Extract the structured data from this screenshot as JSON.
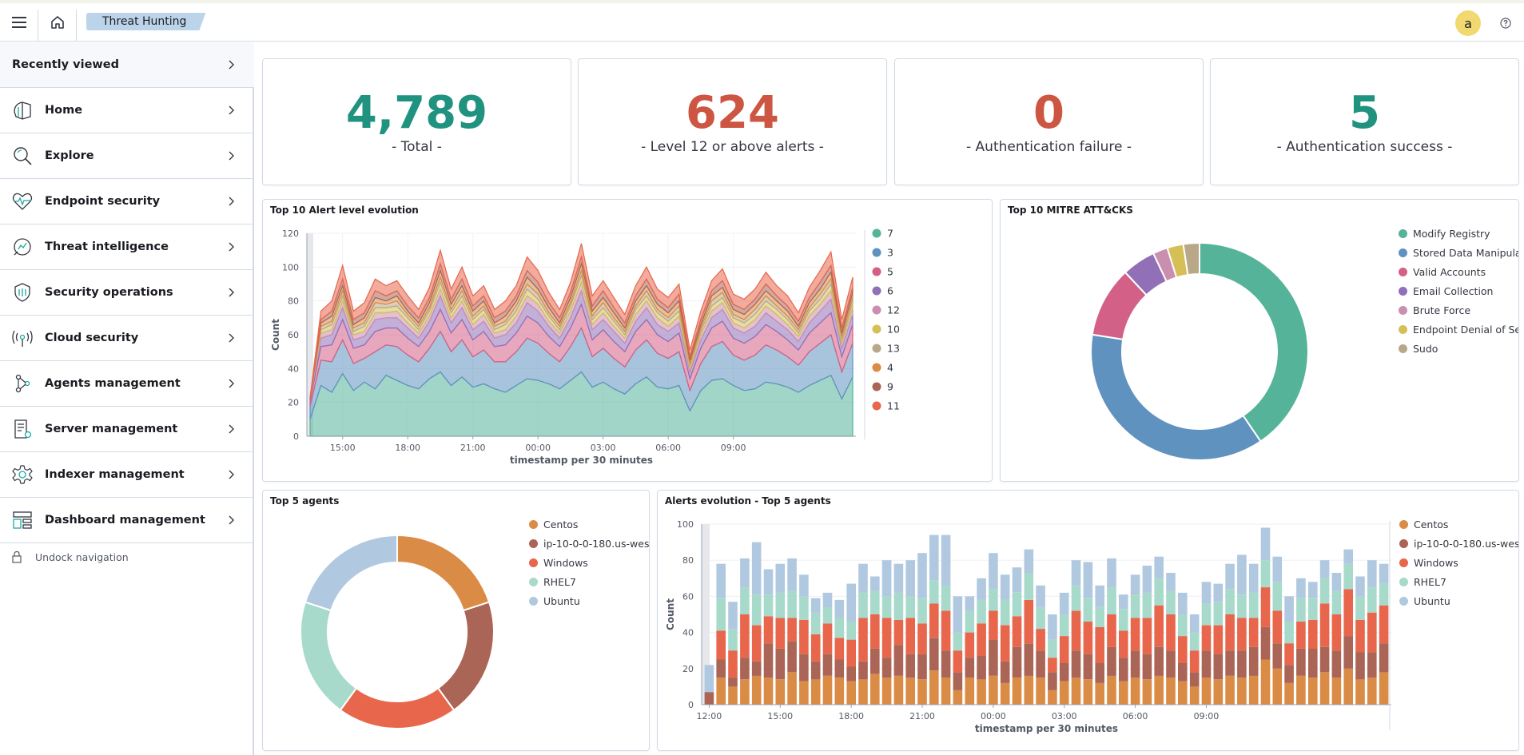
{
  "header": {
    "breadcrumb": "Threat Hunting",
    "avatar_initial": "a",
    "icons": [
      "menu-icon",
      "home-icon",
      "help-icon"
    ]
  },
  "sidebar": {
    "recently_viewed": "Recently viewed",
    "items": [
      {
        "label": "Home",
        "icon": "home-outline-icon"
      },
      {
        "label": "Explore",
        "icon": "search-icon"
      },
      {
        "label": "Endpoint security",
        "icon": "heartbeat-icon"
      },
      {
        "label": "Threat intelligence",
        "icon": "threat-intel-icon"
      },
      {
        "label": "Security operations",
        "icon": "shield-icon"
      },
      {
        "label": "Cloud security",
        "icon": "antenna-icon"
      },
      {
        "label": "Agents management",
        "icon": "nodes-icon"
      },
      {
        "label": "Server management",
        "icon": "server-doc-icon"
      },
      {
        "label": "Indexer management",
        "icon": "gear-icon"
      },
      {
        "label": "Dashboard management",
        "icon": "dashboard-icon"
      }
    ],
    "undock": "Undock navigation"
  },
  "metrics": [
    {
      "value": "4,789",
      "label": "- Total -",
      "color": "#209280"
    },
    {
      "value": "624",
      "label": "- Level 12 or above alerts -",
      "color": "#cc5642"
    },
    {
      "value": "0",
      "label": "- Authentication failure -",
      "color": "#cc5642"
    },
    {
      "value": "5",
      "label": "- Authentication success -",
      "color": "#209280"
    }
  ],
  "panels": {
    "alert_evolution": "Top 10 Alert level evolution",
    "mitre": "Top 10 MITRE ATT&CKS",
    "top_agents": "Top 5 agents",
    "agents_evolution": "Alerts evolution - Top 5 agents"
  },
  "chart_data": [
    {
      "type": "area",
      "stacked": true,
      "title": "Top 10 Alert level evolution",
      "xlabel": "timestamp per 30 minutes",
      "ylabel": "Count",
      "ylim": [
        0,
        120
      ],
      "yticks": [
        "0",
        "20",
        "40",
        "60",
        "80",
        "100",
        "120"
      ],
      "xticks": [
        "15:00",
        "18:00",
        "21:00",
        "00:00",
        "03:00",
        "06:00",
        "09:00"
      ],
      "legend_position": "right",
      "series": [
        {
          "name": "7",
          "color": "#54b399",
          "values": [
            10,
            30,
            26,
            37,
            27,
            32,
            28,
            36,
            33,
            30,
            28,
            34,
            38,
            30,
            35,
            29,
            31,
            28,
            26,
            30,
            34,
            33,
            31,
            28,
            33,
            38,
            29,
            32,
            28,
            25,
            31,
            35,
            29,
            28,
            30,
            15,
            27,
            33,
            34,
            30,
            27,
            28,
            32,
            31,
            29,
            26,
            30,
            33,
            36,
            22,
            35
          ]
        },
        {
          "name": "3",
          "color": "#6092c0",
          "values": [
            8,
            15,
            18,
            20,
            16,
            14,
            22,
            18,
            20,
            18,
            16,
            18,
            24,
            20,
            22,
            18,
            20,
            16,
            18,
            20,
            24,
            22,
            18,
            16,
            20,
            26,
            18,
            20,
            18,
            16,
            20,
            22,
            20,
            18,
            20,
            12,
            16,
            20,
            22,
            18,
            18,
            20,
            22,
            20,
            18,
            16,
            20,
            22,
            24,
            16,
            20
          ]
        },
        {
          "name": "5",
          "color": "#d36086",
          "values": [
            3,
            8,
            10,
            12,
            9,
            8,
            12,
            10,
            11,
            10,
            9,
            10,
            13,
            11,
            12,
            10,
            11,
            9,
            10,
            11,
            13,
            12,
            10,
            9,
            11,
            14,
            10,
            11,
            10,
            9,
            11,
            12,
            11,
            10,
            11,
            7,
            9,
            11,
            12,
            10,
            10,
            11,
            12,
            11,
            10,
            9,
            11,
            12,
            13,
            9,
            11
          ]
        },
        {
          "name": "6",
          "color": "#9170b8",
          "values": [
            1,
            5,
            6,
            7,
            5,
            5,
            7,
            6,
            6,
            6,
            5,
            6,
            8,
            6,
            7,
            6,
            6,
            5,
            6,
            6,
            8,
            7,
            6,
            5,
            6,
            8,
            6,
            6,
            6,
            5,
            6,
            7,
            6,
            6,
            6,
            4,
            5,
            6,
            7,
            6,
            6,
            6,
            7,
            6,
            6,
            5,
            6,
            7,
            8,
            5,
            6
          ]
        },
        {
          "name": "12",
          "color": "#ca8eae",
          "values": [
            0,
            3,
            3,
            4,
            3,
            3,
            4,
            3,
            4,
            3,
            3,
            3,
            4,
            3,
            4,
            3,
            4,
            3,
            3,
            4,
            4,
            4,
            3,
            3,
            4,
            5,
            3,
            4,
            3,
            3,
            4,
            4,
            4,
            3,
            4,
            2,
            3,
            4,
            4,
            3,
            3,
            4,
            4,
            4,
            3,
            3,
            4,
            4,
            5,
            3,
            4
          ]
        },
        {
          "name": "10",
          "color": "#d6bf57",
          "values": [
            0,
            2,
            3,
            3,
            2,
            3,
            3,
            3,
            3,
            3,
            2,
            3,
            4,
            3,
            3,
            3,
            3,
            2,
            3,
            3,
            4,
            3,
            3,
            2,
            3,
            4,
            3,
            3,
            3,
            2,
            3,
            3,
            3,
            3,
            3,
            2,
            2,
            3,
            3,
            3,
            3,
            3,
            3,
            3,
            3,
            2,
            3,
            3,
            4,
            2,
            3
          ]
        },
        {
          "name": "13",
          "color": "#b9a888",
          "values": [
            0,
            2,
            2,
            3,
            2,
            2,
            3,
            2,
            3,
            2,
            2,
            2,
            3,
            2,
            3,
            2,
            2,
            2,
            2,
            3,
            3,
            3,
            2,
            2,
            2,
            3,
            2,
            3,
            2,
            2,
            2,
            3,
            2,
            2,
            3,
            1,
            2,
            3,
            3,
            2,
            2,
            3,
            3,
            2,
            2,
            2,
            2,
            3,
            3,
            2,
            3
          ]
        },
        {
          "name": "4",
          "color": "#da8b45",
          "values": [
            0,
            2,
            3,
            3,
            2,
            3,
            3,
            2,
            3,
            2,
            2,
            3,
            4,
            3,
            3,
            3,
            3,
            2,
            3,
            3,
            4,
            3,
            3,
            2,
            3,
            4,
            3,
            3,
            3,
            2,
            3,
            3,
            3,
            3,
            3,
            2,
            2,
            3,
            3,
            3,
            3,
            3,
            3,
            3,
            3,
            2,
            3,
            3,
            4,
            2,
            3
          ]
        },
        {
          "name": "9",
          "color": "#aa6556",
          "values": [
            0,
            2,
            3,
            4,
            3,
            3,
            4,
            3,
            3,
            3,
            3,
            3,
            4,
            3,
            4,
            3,
            3,
            3,
            3,
            3,
            4,
            4,
            3,
            3,
            3,
            4,
            3,
            4,
            3,
            3,
            3,
            4,
            3,
            3,
            4,
            2,
            3,
            3,
            4,
            3,
            3,
            3,
            4,
            3,
            3,
            3,
            3,
            4,
            4,
            3,
            3
          ]
        },
        {
          "name": "11",
          "color": "#e7664c",
          "values": [
            1,
            5,
            6,
            8,
            5,
            6,
            7,
            6,
            6,
            6,
            5,
            6,
            8,
            6,
            7,
            6,
            6,
            5,
            6,
            6,
            8,
            7,
            6,
            5,
            6,
            8,
            6,
            6,
            6,
            5,
            6,
            7,
            6,
            6,
            6,
            4,
            5,
            6,
            7,
            6,
            6,
            6,
            7,
            6,
            6,
            5,
            6,
            7,
            8,
            5,
            6
          ]
        }
      ]
    },
    {
      "type": "pie",
      "donut": true,
      "title": "Top 10 MITRE ATT&CKS",
      "legend_position": "right",
      "categories": [
        "Modify Registry",
        "Stored Data Manipulat",
        "Valid Accounts",
        "Email Collection",
        "Brute Force",
        "Endpoint Denial of Ser",
        "Sudo"
      ],
      "values": [
        40.5,
        37,
        10.5,
        5,
        2.2,
        2.4,
        2.4
      ],
      "colors": [
        "#54b399",
        "#6092c0",
        "#d36086",
        "#9170b8",
        "#ca8eae",
        "#d6bf57",
        "#b9a888"
      ]
    },
    {
      "type": "pie",
      "donut": true,
      "title": "Top 5 agents",
      "legend_position": "right",
      "categories": [
        "Centos",
        "ip-10-0-0-180.us-wes",
        "Windows",
        "RHEL7",
        "Ubuntu"
      ],
      "values": [
        20,
        20,
        20,
        20,
        20
      ],
      "colors": [
        "#da8b45",
        "#aa6556",
        "#e7664c",
        "#a8dacb",
        "#b0c9e0"
      ]
    },
    {
      "type": "bar",
      "stacked": true,
      "title": "Alerts evolution - Top 5 agents",
      "xlabel": "timestamp per 30 minutes",
      "ylabel": "Count",
      "ylim": [
        0,
        100
      ],
      "yticks": [
        "0",
        "20",
        "40",
        "60",
        "80",
        "100"
      ],
      "xticks": [
        "12:00",
        "15:00",
        "18:00",
        "21:00",
        "00:00",
        "03:00",
        "06:00",
        "09:00"
      ],
      "legend_position": "right",
      "series": [
        {
          "name": "Centos",
          "color": "#da8b45",
          "values": [
            0,
            15,
            10,
            14,
            16,
            15,
            14,
            18,
            13,
            14,
            16,
            15,
            13,
            14,
            17,
            15,
            16,
            15,
            14,
            19,
            15,
            8,
            15,
            14,
            16,
            12,
            15,
            16,
            15,
            8,
            13,
            15,
            14,
            12,
            16,
            13,
            15,
            14,
            16,
            15,
            13,
            10,
            15,
            14,
            16,
            15,
            16,
            25,
            20,
            12,
            16,
            15,
            18,
            15,
            20,
            14,
            15,
            18
          ]
        },
        {
          "name": "ip-10-0-0-180.us-wes",
          "color": "#aa6556",
          "values": [
            7,
            10,
            5,
            12,
            8,
            19,
            17,
            17,
            15,
            10,
            12,
            10,
            8,
            10,
            14,
            11,
            17,
            13,
            14,
            18,
            15,
            10,
            11,
            13,
            20,
            12,
            17,
            18,
            15,
            10,
            10,
            15,
            14,
            11,
            16,
            13,
            15,
            14,
            16,
            15,
            10,
            8,
            15,
            14,
            14,
            15,
            16,
            18,
            14,
            10,
            15,
            16,
            14,
            15,
            18,
            15,
            14,
            16
          ]
        },
        {
          "name": "Windows",
          "color": "#e7664c",
          "values": [
            0,
            16,
            15,
            24,
            20,
            15,
            17,
            13,
            19,
            15,
            17,
            12,
            15,
            24,
            19,
            22,
            14,
            20,
            17,
            19,
            22,
            12,
            14,
            18,
            16,
            20,
            17,
            24,
            12,
            8,
            15,
            22,
            18,
            20,
            18,
            15,
            18,
            20,
            23,
            20,
            15,
            12,
            14,
            16,
            20,
            18,
            16,
            22,
            18,
            12,
            15,
            16,
            24,
            20,
            26,
            18,
            22,
            21
          ]
        },
        {
          "name": "RHEL7",
          "color": "#a8dacb",
          "values": [
            0,
            18,
            12,
            15,
            17,
            12,
            14,
            15,
            13,
            12,
            9,
            11,
            10,
            14,
            13,
            12,
            15,
            12,
            14,
            13,
            14,
            10,
            12,
            13,
            12,
            14,
            13,
            15,
            12,
            10,
            12,
            14,
            13,
            11,
            15,
            12,
            13,
            14,
            15,
            13,
            12,
            10,
            12,
            13,
            14,
            13,
            14,
            15,
            16,
            12,
            13,
            12,
            14,
            13,
            14,
            13,
            14,
            12
          ]
        },
        {
          "name": "Ubuntu",
          "color": "#b0c9e0",
          "values": [
            15,
            19,
            15,
            16,
            29,
            14,
            16,
            18,
            12,
            8,
            8,
            10,
            21,
            16,
            8,
            20,
            16,
            20,
            25,
            25,
            28,
            20,
            8,
            12,
            20,
            14,
            14,
            13,
            12,
            14,
            12,
            14,
            20,
            12,
            16,
            8,
            11,
            15,
            12,
            10,
            12,
            10,
            12,
            10,
            14,
            22,
            16,
            18,
            14,
            14,
            11,
            9,
            10,
            10,
            8,
            11,
            15,
            11
          ]
        }
      ]
    }
  ]
}
